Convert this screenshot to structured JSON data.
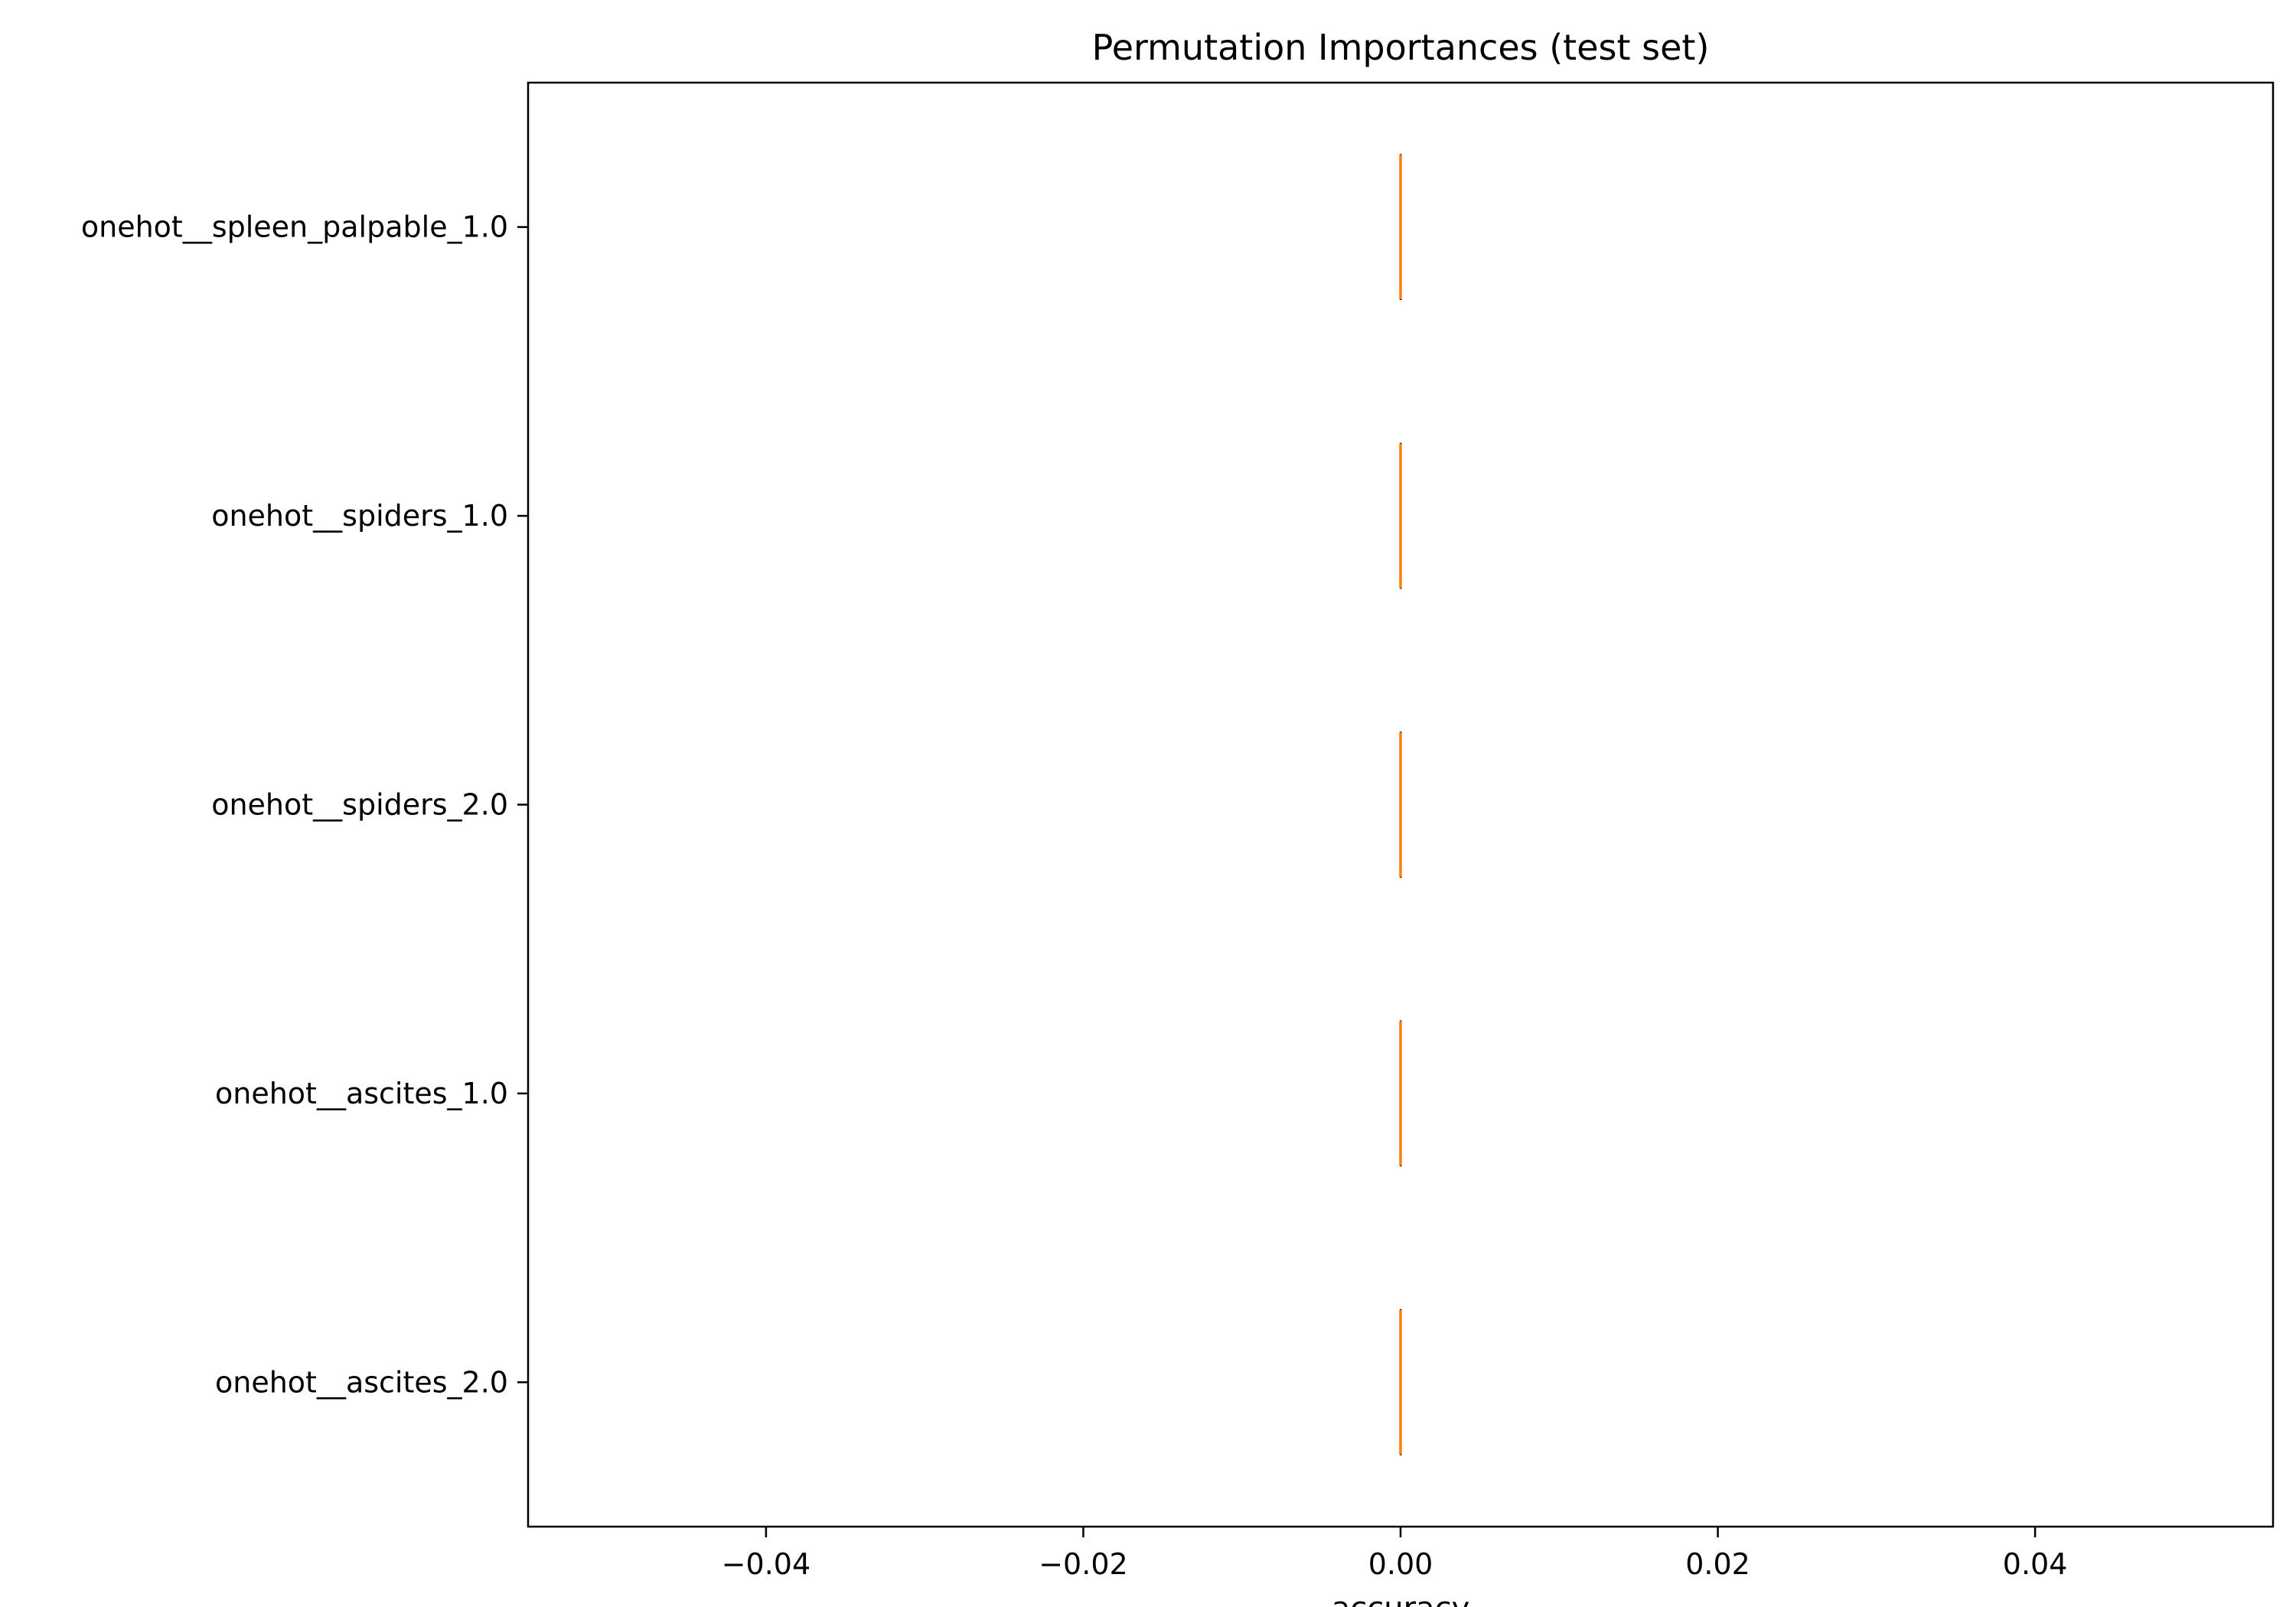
{
  "chart_data": {
    "type": "box",
    "title": "Permutation Importances (test set)",
    "xlabel": "accuracy",
    "ylabel": "",
    "xlim": [
      -0.055,
      0.055
    ],
    "xticks": [
      -0.04,
      -0.02,
      0.0,
      0.02,
      0.04
    ],
    "xtick_labels": [
      "−0.04",
      "−0.02",
      "0.00",
      "0.02",
      "0.04"
    ],
    "categories": [
      "onehot__spleen_palpable_1.0",
      "onehot__spiders_1.0",
      "onehot__spiders_2.0",
      "onehot__ascites_1.0",
      "onehot__ascites_2.0"
    ],
    "series": [
      {
        "values": [
          {
            "min": 0.0,
            "q1": 0.0,
            "median": 0.0,
            "q3": 0.0,
            "max": 0.0
          },
          {
            "min": 0.0,
            "q1": 0.0,
            "median": 0.0,
            "q3": 0.0,
            "max": 0.0
          },
          {
            "min": 0.0,
            "q1": 0.0,
            "median": 0.0,
            "q3": 0.0,
            "max": 0.0
          },
          {
            "min": 0.0,
            "q1": 0.0,
            "median": 0.0,
            "q3": 0.0,
            "max": 0.0
          },
          {
            "min": 0.0,
            "q1": 0.0,
            "median": 0.0,
            "q3": 0.0,
            "max": 0.0
          }
        ]
      }
    ],
    "orientation": "horizontal",
    "grid": false,
    "colors": {
      "median": "#ff7f0e",
      "axes": "#000000"
    }
  }
}
